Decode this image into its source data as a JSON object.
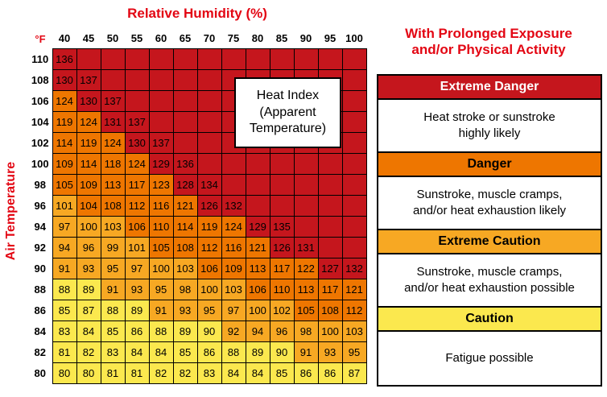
{
  "page": {
    "title": "Relative Humidity (%)",
    "y_axis_label": "Air Temperature",
    "unit_label": "°F"
  },
  "overlay": {
    "lines": [
      "Heat Index",
      "(Apparent",
      "Temperature)"
    ]
  },
  "chart_data": {
    "type": "heatmap",
    "title": "Heat Index (Apparent Temperature)",
    "xlabel": "Relative Humidity (%)",
    "ylabel": "Air Temperature (°F)",
    "humidity_percent": [
      40,
      45,
      50,
      55,
      60,
      65,
      70,
      75,
      80,
      85,
      90,
      95,
      100
    ],
    "air_temperature_f": [
      110,
      108,
      106,
      104,
      102,
      100,
      98,
      96,
      94,
      92,
      90,
      88,
      86,
      84,
      82,
      80
    ],
    "heat_index_rows": [
      [
        136
      ],
      [
        130,
        137
      ],
      [
        124,
        130,
        137
      ],
      [
        119,
        124,
        131,
        137
      ],
      [
        114,
        119,
        124,
        130,
        137
      ],
      [
        109,
        114,
        118,
        124,
        129,
        136
      ],
      [
        105,
        109,
        113,
        117,
        123,
        128,
        134
      ],
      [
        101,
        104,
        108,
        112,
        116,
        121,
        126,
        132
      ],
      [
        97,
        100,
        103,
        106,
        110,
        114,
        119,
        124,
        129,
        135
      ],
      [
        94,
        96,
        99,
        101,
        105,
        108,
        112,
        116,
        121,
        126,
        131
      ],
      [
        91,
        93,
        95,
        97,
        100,
        103,
        106,
        109,
        113,
        117,
        122,
        127,
        132
      ],
      [
        88,
        89,
        91,
        93,
        95,
        98,
        100,
        103,
        106,
        110,
        113,
        117,
        121
      ],
      [
        85,
        87,
        88,
        89,
        91,
        93,
        95,
        97,
        100,
        102,
        105,
        108,
        112
      ],
      [
        83,
        84,
        85,
        86,
        88,
        89,
        90,
        92,
        94,
        96,
        98,
        100,
        103
      ],
      [
        81,
        82,
        83,
        84,
        84,
        85,
        86,
        88,
        89,
        90,
        91,
        93,
        95
      ],
      [
        80,
        80,
        81,
        81,
        82,
        82,
        83,
        84,
        84,
        85,
        86,
        86,
        87
      ]
    ],
    "categories": [
      {
        "name": "Extreme Danger",
        "min_value": 126,
        "color": "#c5161d"
      },
      {
        "name": "Danger",
        "min_value": 104,
        "color": "#ee7600"
      },
      {
        "name": "Extreme Caution",
        "min_value": 91,
        "color": "#f7a823"
      },
      {
        "name": "Caution",
        "min_value": 0,
        "color": "#fbe84e"
      }
    ]
  },
  "legend": {
    "title_lines": [
      "With Prolonged Exposure",
      "and/or Physical Activity"
    ],
    "entries": [
      {
        "label": "Extreme Danger",
        "color": "#c5161d",
        "text_color": "#ffffff",
        "description_lines": [
          "Heat stroke or sunstroke",
          "highly likely"
        ]
      },
      {
        "label": "Danger",
        "color": "#ee7600",
        "text_color": "#000000",
        "description_lines": [
          "Sunstroke, muscle cramps,",
          "and/or heat exhaustion likely"
        ]
      },
      {
        "label": "Extreme Caution",
        "color": "#f7a823",
        "text_color": "#000000",
        "description_lines": [
          "Sunstroke, muscle cramps,",
          "and/or heat exhaustion possible"
        ]
      },
      {
        "label": "Caution",
        "color": "#fbe84e",
        "text_color": "#000000",
        "description_lines": [
          "Fatigue possible"
        ]
      }
    ]
  },
  "colors": {
    "heading_red": "#e30613",
    "grid_border": "#000000",
    "background": "#ffffff"
  }
}
